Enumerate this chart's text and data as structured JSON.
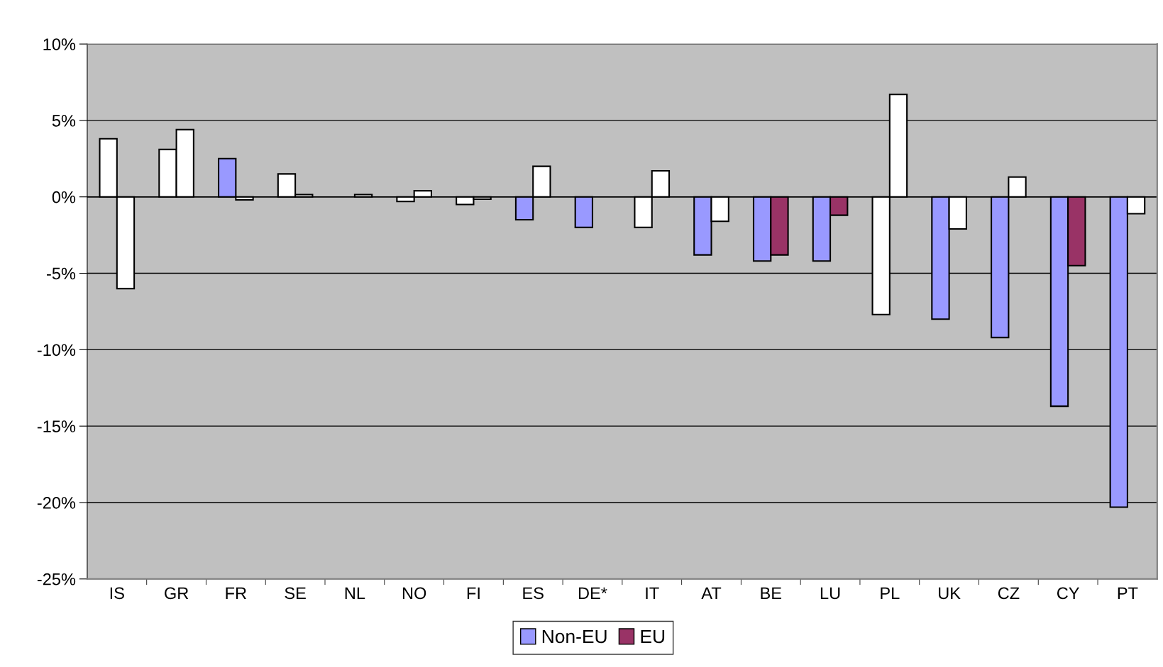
{
  "chart_data": {
    "type": "bar",
    "categories": [
      "IS",
      "GR",
      "FR",
      "SE",
      "NL",
      "NO",
      "FI",
      "ES",
      "DE*",
      "IT",
      "AT",
      "BE",
      "LU",
      "PL",
      "UK",
      "CZ",
      "CY",
      "PT"
    ],
    "series": [
      {
        "name": "Non-EU",
        "color": "#9999ff",
        "values": [
          3.8,
          3.1,
          2.5,
          1.5,
          null,
          -0.3,
          -0.5,
          -1.5,
          -2.0,
          -2.0,
          -3.8,
          -4.2,
          -4.2,
          -7.7,
          -8.0,
          -9.2,
          -13.7,
          -20.3
        ],
        "colors": [
          "#ffffff",
          "#ffffff",
          "#9999ff",
          "#ffffff",
          null,
          "#ffffff",
          "#ffffff",
          "#9999ff",
          "#9999ff",
          "#ffffff",
          "#9999ff",
          "#9999ff",
          "#9999ff",
          "#ffffff",
          "#9999ff",
          "#9999ff",
          "#9999ff",
          "#9999ff"
        ]
      },
      {
        "name": "EU",
        "color": "#993366",
        "values": [
          -6.0,
          4.4,
          -0.2,
          0.15,
          0.15,
          0.4,
          -0.15,
          2.0,
          null,
          1.7,
          -1.6,
          -3.8,
          -1.2,
          6.7,
          -2.1,
          1.3,
          -4.5,
          -1.1
        ],
        "colors": [
          "#ffffff",
          "#ffffff",
          "#ffffff",
          "#ffffff",
          "#ffffff",
          "#ffffff",
          "#ffffff",
          "#ffffff",
          null,
          "#ffffff",
          "#ffffff",
          "#993366",
          "#993366",
          "#ffffff",
          "#ffffff",
          "#ffffff",
          "#993366",
          "#ffffff"
        ]
      }
    ],
    "ylim": [
      -25,
      10
    ],
    "yticks": [
      {
        "value": 10,
        "label": "10%"
      },
      {
        "value": 5,
        "label": "5%"
      },
      {
        "value": 0,
        "label": "0%"
      },
      {
        "value": -5,
        "label": "-5%"
      },
      {
        "value": -10,
        "label": "-10%"
      },
      {
        "value": -15,
        "label": "-15%"
      },
      {
        "value": -20,
        "label": "-20%"
      },
      {
        "value": -25,
        "label": "-25%"
      }
    ],
    "grid": "y",
    "legend": "bottom"
  }
}
